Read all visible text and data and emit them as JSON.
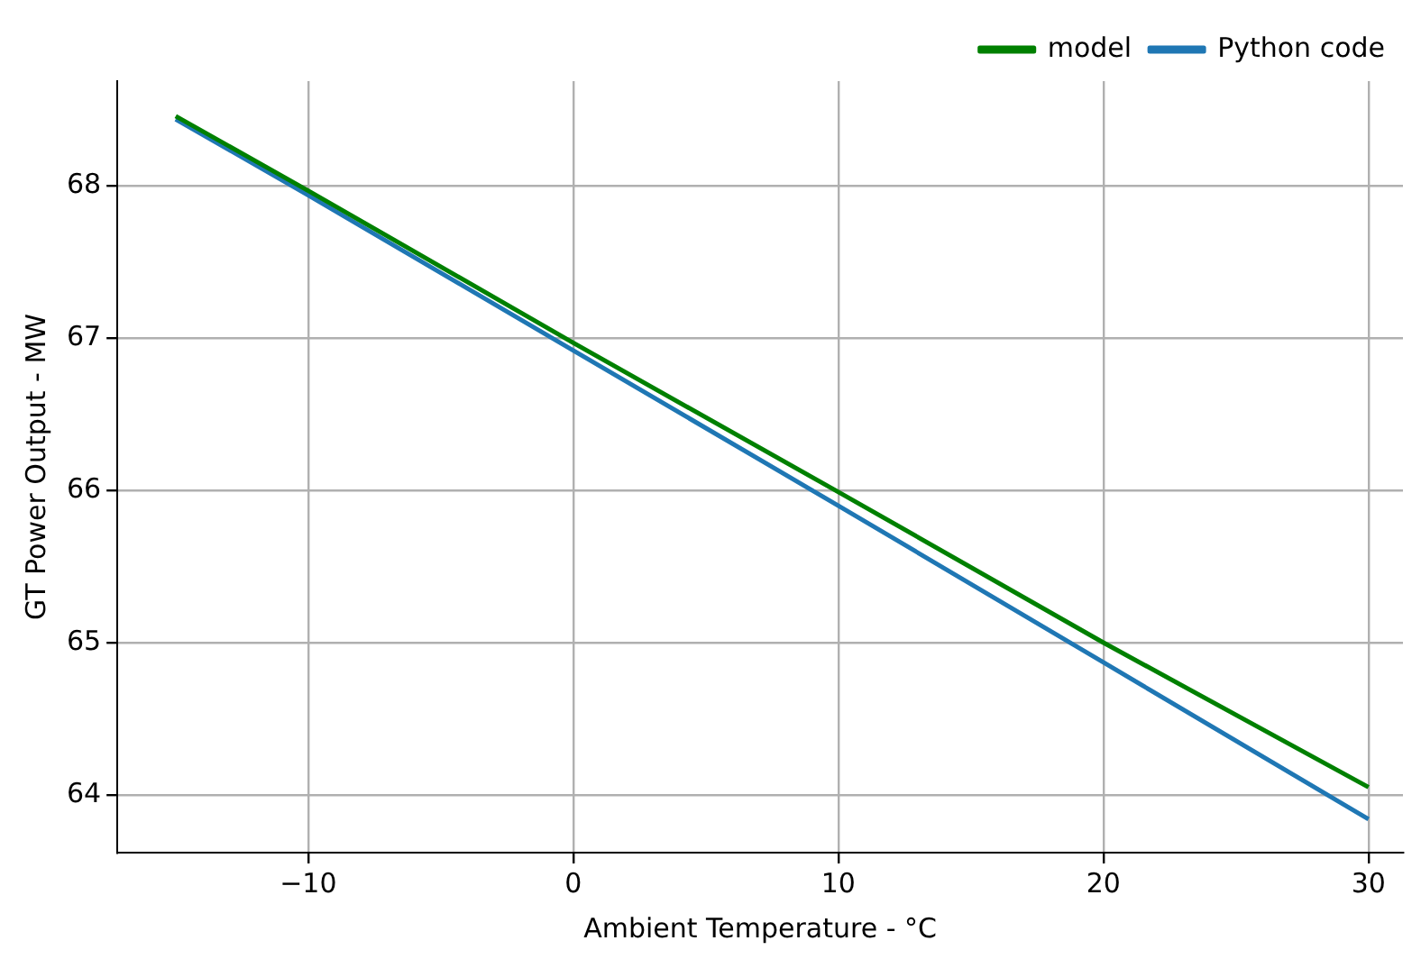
{
  "chart_data": {
    "type": "line",
    "xlabel": "Ambient Temperature - °C",
    "ylabel": "GT Power Output - MW",
    "xlim": [
      -17.2,
      31.3
    ],
    "xticks": [
      -10,
      0,
      10,
      20,
      30
    ],
    "ylim": [
      63.62,
      68.69
    ],
    "yticks": [
      64,
      65,
      66,
      67,
      68
    ],
    "grid": true,
    "legend": "top right",
    "marker": "none",
    "line_style": "solid",
    "series": [
      {
        "name": "model",
        "color": "#008000",
        "x": [
          -15,
          -10,
          0,
          10,
          20,
          30
        ],
        "values": [
          68.46,
          67.97,
          66.97,
          65.99,
          65.0,
          64.05
        ]
      },
      {
        "name": "Python code",
        "color": "#1f77b4",
        "x": [
          -15,
          -10,
          0,
          10,
          20,
          30
        ],
        "values": [
          68.44,
          67.94,
          66.92,
          65.9,
          64.87,
          63.84
        ]
      }
    ]
  }
}
